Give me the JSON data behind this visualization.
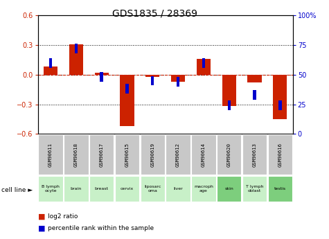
{
  "title": "GDS1835 / 28369",
  "samples": [
    "GSM90611",
    "GSM90618",
    "GSM90617",
    "GSM90615",
    "GSM90619",
    "GSM90612",
    "GSM90614",
    "GSM90620",
    "GSM90613",
    "GSM90616"
  ],
  "cell_lines": [
    "B lymph\nocyte",
    "brain",
    "breast",
    "cervix",
    "liposarc\noma",
    "liver",
    "macroph\nage",
    "skin",
    "T lymph\noblast",
    "testis"
  ],
  "cell_line_colors": [
    "#c8f0c8",
    "#c8f0c8",
    "#c8f0c8",
    "#c8f0c8",
    "#c8f0c8",
    "#c8f0c8",
    "#c8f0c8",
    "#7dce7d",
    "#c8f0c8",
    "#7dce7d"
  ],
  "log2_ratio": [
    0.08,
    0.31,
    0.02,
    -0.52,
    -0.02,
    -0.07,
    0.16,
    -0.32,
    -0.08,
    -0.45
  ],
  "percentile_rank": [
    60,
    72,
    48,
    38,
    45,
    44,
    60,
    24,
    33,
    24
  ],
  "log2_color": "#cc2200",
  "percentile_color": "#0000cc",
  "ylim": [
    -0.6,
    0.6
  ],
  "y2lim": [
    0,
    100
  ],
  "yticks_left": [
    -0.6,
    -0.3,
    0.0,
    0.3,
    0.6
  ],
  "yticks_right": [
    0,
    25,
    50,
    75,
    100
  ],
  "legend_labels": [
    "log2 ratio",
    "percentile rank within the sample"
  ],
  "gsm_box_color": "#c8c8c8",
  "bar_width": 0.55,
  "blue_marker_size": 0.12,
  "title_fontsize": 10,
  "tick_fontsize": 7,
  "label_fontsize": 7
}
